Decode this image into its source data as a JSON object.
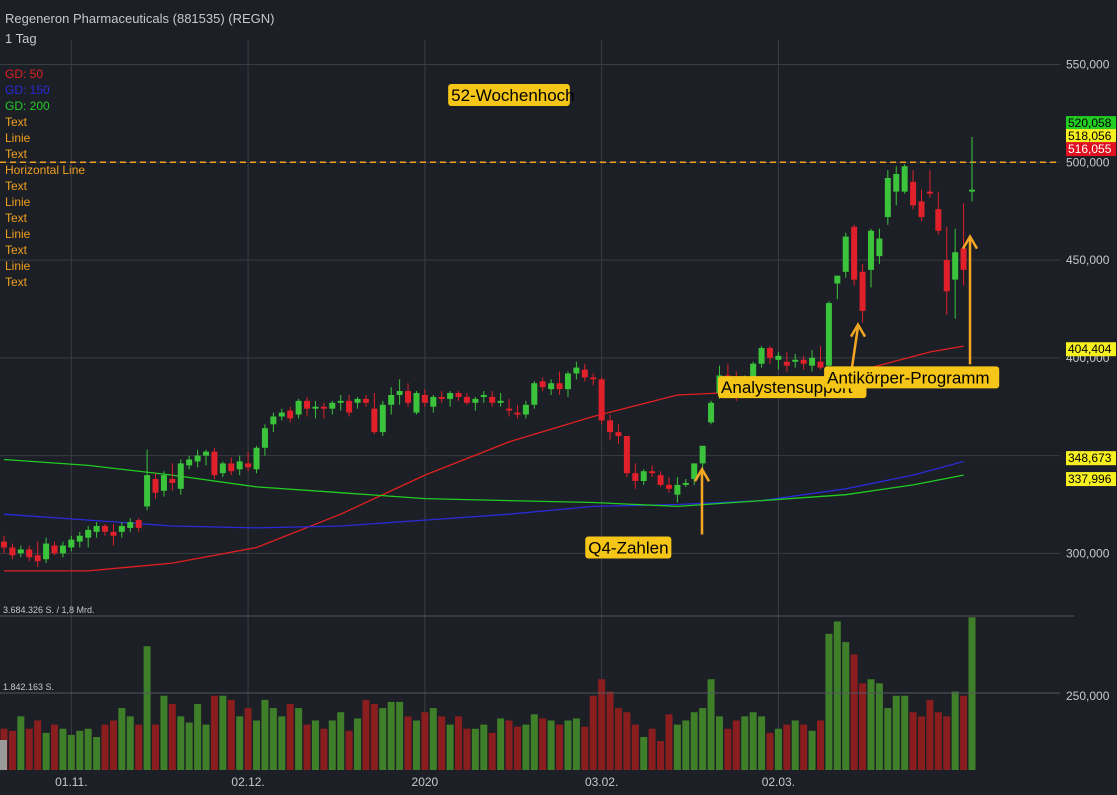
{
  "header": {
    "title": "Regeneron Pharmaceuticals (881535) (REGN)",
    "interval": "1 Tag"
  },
  "legend": [
    {
      "label": "GD: 50",
      "color": "#e02020"
    },
    {
      "label": "GD: 150",
      "color": "#2a2ad8"
    },
    {
      "label": "GD: 200",
      "color": "#22cc22"
    },
    {
      "label": "Text",
      "color": "#f0a020"
    },
    {
      "label": "Linie",
      "color": "#f0a020"
    },
    {
      "label": "Text",
      "color": "#f0a020"
    },
    {
      "label": "Horizontal Line",
      "color": "#f0a020"
    },
    {
      "label": "Text",
      "color": "#f0a020"
    },
    {
      "label": "Linie",
      "color": "#f0a020"
    },
    {
      "label": "Text",
      "color": "#f0a020"
    },
    {
      "label": "Linie",
      "color": "#f0a020"
    },
    {
      "label": "Text",
      "color": "#f0a020"
    },
    {
      "label": "Linie",
      "color": "#f0a020"
    },
    {
      "label": "Text",
      "color": "#f0a020"
    }
  ],
  "chart_data": {
    "type": "candlestick",
    "y_axis": {
      "ticks": [
        300,
        350,
        400,
        450,
        500,
        550
      ],
      "tick_labels": [
        "300,000",
        "350,000",
        "400,000",
        "450,000",
        "500,000",
        "550,000"
      ],
      "range": [
        270,
        560
      ]
    },
    "x_axis": {
      "tick_labels": [
        "01.11.",
        "02.12.",
        "2020",
        "03.02.",
        "02.03."
      ],
      "tick_index": [
        8,
        29,
        50,
        71,
        92
      ]
    },
    "price_tags": [
      {
        "value": 520.058,
        "label": "520,058",
        "bg": "#22cc22",
        "fg": "#000000"
      },
      {
        "value": 518.056,
        "label": "518,056",
        "bg": "#f7f020",
        "fg": "#000000"
      },
      {
        "value": 516.055,
        "label": "516,055",
        "bg": "#e01020",
        "fg": "#ffffff"
      },
      {
        "value": 404.404,
        "label": "404,404",
        "bg": "#f7f020",
        "fg": "#000000"
      },
      {
        "value": 348.673,
        "label": "348,673",
        "bg": "#f7f020",
        "fg": "#000000"
      },
      {
        "value": 337.996,
        "label": "337,996",
        "bg": "#f7f020",
        "fg": "#000000"
      }
    ],
    "horizontal_line": {
      "value": 500,
      "color": "#f0a020",
      "label": "52-Wochenhoch"
    },
    "annotations": [
      {
        "text": "Q4-Zahlen",
        "index": 75,
        "value": 303,
        "arrow_to": 343
      },
      {
        "text": "Analystensupport",
        "index": 94,
        "value": 385,
        "arrow_to": 417
      },
      {
        "text": "Antikörper-Programm",
        "index": 107,
        "value": 390,
        "arrow_to": 462
      }
    ],
    "volume": {
      "top_label": "3.684.326 S. / 1,8 Mrd.",
      "mid_label": "1.842.163 S.",
      "max": 3684326,
      "right_tick_label": "250,000"
    },
    "candles": [
      {
        "o": 306,
        "h": 309,
        "l": 300,
        "c": 303,
        "v": 1000000
      },
      {
        "o": 303,
        "h": 305,
        "l": 297,
        "c": 299,
        "v": 950000
      },
      {
        "o": 300,
        "h": 304,
        "l": 298,
        "c": 302,
        "v": 1300000
      },
      {
        "o": 302,
        "h": 304,
        "l": 296,
        "c": 298,
        "v": 1000000
      },
      {
        "o": 299,
        "h": 306,
        "l": 293,
        "c": 296,
        "v": 1200000
      },
      {
        "o": 297,
        "h": 308,
        "l": 295,
        "c": 305,
        "v": 900000
      },
      {
        "o": 304,
        "h": 306,
        "l": 299,
        "c": 300,
        "v": 1100000
      },
      {
        "o": 300,
        "h": 306,
        "l": 298,
        "c": 304,
        "v": 1000000
      },
      {
        "o": 303,
        "h": 309,
        "l": 301,
        "c": 307,
        "v": 850000
      },
      {
        "o": 306,
        "h": 311,
        "l": 303,
        "c": 309,
        "v": 950000
      },
      {
        "o": 308,
        "h": 314,
        "l": 303,
        "c": 312,
        "v": 1000000
      },
      {
        "o": 311,
        "h": 316,
        "l": 308,
        "c": 314,
        "v": 800000
      },
      {
        "o": 314,
        "h": 315,
        "l": 309,
        "c": 311,
        "v": 1100000
      },
      {
        "o": 311,
        "h": 315,
        "l": 304,
        "c": 309,
        "v": 1200000
      },
      {
        "o": 311,
        "h": 316,
        "l": 308,
        "c": 314,
        "v": 1500000
      },
      {
        "o": 313,
        "h": 318,
        "l": 311,
        "c": 316,
        "v": 1300000
      },
      {
        "o": 317,
        "h": 318,
        "l": 311,
        "c": 313,
        "v": 1100000
      },
      {
        "o": 324,
        "h": 353,
        "l": 322,
        "c": 340,
        "v": 3000000
      },
      {
        "o": 338,
        "h": 341,
        "l": 328,
        "c": 331,
        "v": 1100000
      },
      {
        "o": 332,
        "h": 342,
        "l": 329,
        "c": 340,
        "v": 1800000
      },
      {
        "o": 338,
        "h": 346,
        "l": 332,
        "c": 336,
        "v": 1600000
      },
      {
        "o": 333,
        "h": 348,
        "l": 330,
        "c": 346,
        "v": 1300000
      },
      {
        "o": 345,
        "h": 350,
        "l": 343,
        "c": 348,
        "v": 1150000
      },
      {
        "o": 347,
        "h": 353,
        "l": 344,
        "c": 350,
        "v": 1600000
      },
      {
        "o": 350,
        "h": 353,
        "l": 345,
        "c": 352,
        "v": 1100000
      },
      {
        "o": 352,
        "h": 354,
        "l": 338,
        "c": 340,
        "v": 1800000
      },
      {
        "o": 341,
        "h": 347,
        "l": 339,
        "c": 346,
        "v": 1800000
      },
      {
        "o": 346,
        "h": 349,
        "l": 340,
        "c": 342,
        "v": 1700000
      },
      {
        "o": 343,
        "h": 350,
        "l": 340,
        "c": 347,
        "v": 1300000
      },
      {
        "o": 346,
        "h": 352,
        "l": 342,
        "c": 344,
        "v": 1500000
      },
      {
        "o": 343,
        "h": 355,
        "l": 341,
        "c": 354,
        "v": 1200000
      },
      {
        "o": 354,
        "h": 366,
        "l": 350,
        "c": 364,
        "v": 1700000
      },
      {
        "o": 366,
        "h": 372,
        "l": 362,
        "c": 370,
        "v": 1500000
      },
      {
        "o": 370,
        "h": 374,
        "l": 368,
        "c": 372,
        "v": 1300000
      },
      {
        "o": 373,
        "h": 375,
        "l": 367,
        "c": 369,
        "v": 1600000
      },
      {
        "o": 371,
        "h": 379,
        "l": 369,
        "c": 378,
        "v": 1500000
      },
      {
        "o": 378,
        "h": 380,
        "l": 370,
        "c": 374,
        "v": 1100000
      },
      {
        "o": 374,
        "h": 378,
        "l": 369,
        "c": 375,
        "v": 1200000
      },
      {
        "o": 375,
        "h": 377,
        "l": 369,
        "c": 374,
        "v": 1000000
      },
      {
        "o": 374,
        "h": 378,
        "l": 371,
        "c": 377,
        "v": 1200000
      },
      {
        "o": 377,
        "h": 381,
        "l": 373,
        "c": 378,
        "v": 1400000
      },
      {
        "o": 378,
        "h": 381,
        "l": 370,
        "c": 372,
        "v": 950000
      },
      {
        "o": 377,
        "h": 380,
        "l": 374,
        "c": 379,
        "v": 1250000
      },
      {
        "o": 379,
        "h": 381,
        "l": 375,
        "c": 377,
        "v": 1700000
      },
      {
        "o": 374,
        "h": 382,
        "l": 361,
        "c": 362,
        "v": 1600000
      },
      {
        "o": 362,
        "h": 378,
        "l": 360,
        "c": 376,
        "v": 1500000
      },
      {
        "o": 376,
        "h": 385,
        "l": 371,
        "c": 381,
        "v": 1650000
      },
      {
        "o": 381,
        "h": 389,
        "l": 376,
        "c": 383,
        "v": 1650000
      },
      {
        "o": 383,
        "h": 387,
        "l": 375,
        "c": 377,
        "v": 1300000
      },
      {
        "o": 372,
        "h": 383,
        "l": 371,
        "c": 382,
        "v": 1200000
      },
      {
        "o": 381,
        "h": 384,
        "l": 375,
        "c": 377,
        "v": 1400000
      },
      {
        "o": 375,
        "h": 381,
        "l": 372,
        "c": 380,
        "v": 1500000
      },
      {
        "o": 380,
        "h": 383,
        "l": 377,
        "c": 379,
        "v": 1300000
      },
      {
        "o": 379,
        "h": 383,
        "l": 375,
        "c": 382,
        "v": 1100000
      },
      {
        "o": 382,
        "h": 383,
        "l": 378,
        "c": 380,
        "v": 1300000
      },
      {
        "o": 380,
        "h": 382,
        "l": 376,
        "c": 377,
        "v": 1000000
      },
      {
        "o": 377,
        "h": 380,
        "l": 373,
        "c": 379,
        "v": 1000000
      },
      {
        "o": 380,
        "h": 383,
        "l": 377,
        "c": 381,
        "v": 1100000
      },
      {
        "o": 380,
        "h": 383,
        "l": 375,
        "c": 377,
        "v": 900000
      },
      {
        "o": 377,
        "h": 382,
        "l": 375,
        "c": 378,
        "v": 1250000
      },
      {
        "o": 374,
        "h": 379,
        "l": 370,
        "c": 373,
        "v": 1200000
      },
      {
        "o": 372,
        "h": 376,
        "l": 369,
        "c": 371,
        "v": 1050000
      },
      {
        "o": 371,
        "h": 378,
        "l": 369,
        "c": 376,
        "v": 1100000
      },
      {
        "o": 376,
        "h": 388,
        "l": 374,
        "c": 387,
        "v": 1350000
      },
      {
        "o": 388,
        "h": 390,
        "l": 383,
        "c": 385,
        "v": 1250000
      },
      {
        "o": 384,
        "h": 389,
        "l": 381,
        "c": 387,
        "v": 1200000
      },
      {
        "o": 387,
        "h": 393,
        "l": 381,
        "c": 384,
        "v": 1100000
      },
      {
        "o": 384,
        "h": 393,
        "l": 380,
        "c": 392,
        "v": 1200000
      },
      {
        "o": 392,
        "h": 398,
        "l": 389,
        "c": 395,
        "v": 1250000
      },
      {
        "o": 394,
        "h": 397,
        "l": 388,
        "c": 390,
        "v": 1050000
      },
      {
        "o": 390,
        "h": 392,
        "l": 386,
        "c": 389,
        "v": 1800000
      },
      {
        "o": 389,
        "h": 390,
        "l": 366,
        "c": 368,
        "v": 2200000
      },
      {
        "o": 368,
        "h": 371,
        "l": 358,
        "c": 362,
        "v": 1900000
      },
      {
        "o": 362,
        "h": 366,
        "l": 356,
        "c": 360,
        "v": 1500000
      },
      {
        "o": 360,
        "h": 360,
        "l": 339,
        "c": 341,
        "v": 1400000
      },
      {
        "o": 341,
        "h": 346,
        "l": 333,
        "c": 337,
        "v": 1100000
      },
      {
        "o": 337,
        "h": 343,
        "l": 335,
        "c": 342,
        "v": 800000
      },
      {
        "o": 342,
        "h": 345,
        "l": 339,
        "c": 341,
        "v": 1000000
      },
      {
        "o": 340,
        "h": 342,
        "l": 334,
        "c": 335,
        "v": 700000
      },
      {
        "o": 335,
        "h": 339,
        "l": 331,
        "c": 333,
        "v": 1350000
      },
      {
        "o": 330,
        "h": 339,
        "l": 326,
        "c": 335,
        "v": 1100000
      },
      {
        "o": 335,
        "h": 338,
        "l": 334,
        "c": 336,
        "v": 1200000
      },
      {
        "o": 338,
        "h": 346,
        "l": 335,
        "c": 346,
        "v": 1400000
      },
      {
        "o": 346,
        "h": 354,
        "l": 343,
        "c": 355,
        "v": 1500000
      },
      {
        "o": 367,
        "h": 378,
        "l": 366,
        "c": 377,
        "v": 2200000
      },
      {
        "o": 382,
        "h": 396,
        "l": 379,
        "c": 391,
        "v": 1300000
      },
      {
        "o": 391,
        "h": 397,
        "l": 383,
        "c": 389,
        "v": 1000000
      },
      {
        "o": 390,
        "h": 393,
        "l": 378,
        "c": 380,
        "v": 1200000
      },
      {
        "o": 380,
        "h": 391,
        "l": 380,
        "c": 389,
        "v": 1300000
      },
      {
        "o": 387,
        "h": 398,
        "l": 384,
        "c": 397,
        "v": 1400000
      },
      {
        "o": 397,
        "h": 406,
        "l": 395,
        "c": 405,
        "v": 1300000
      },
      {
        "o": 405,
        "h": 406,
        "l": 397,
        "c": 400,
        "v": 900000
      },
      {
        "o": 399,
        "h": 403,
        "l": 394,
        "c": 401,
        "v": 1000000
      },
      {
        "o": 398,
        "h": 403,
        "l": 393,
        "c": 396,
        "v": 1100000
      },
      {
        "o": 398,
        "h": 402,
        "l": 395,
        "c": 399,
        "v": 1200000
      },
      {
        "o": 399,
        "h": 401,
        "l": 394,
        "c": 397,
        "v": 1100000
      },
      {
        "o": 396,
        "h": 404,
        "l": 393,
        "c": 400,
        "v": 950000
      },
      {
        "o": 398,
        "h": 406,
        "l": 394,
        "c": 395,
        "v": 1200000
      },
      {
        "o": 396,
        "h": 429,
        "l": 388,
        "c": 428,
        "v": 3300000
      },
      {
        "o": 438,
        "h": 442,
        "l": 430,
        "c": 442,
        "v": 3600000
      },
      {
        "o": 444,
        "h": 464,
        "l": 441,
        "c": 462,
        "v": 3100000
      },
      {
        "o": 467,
        "h": 468,
        "l": 437,
        "c": 440,
        "v": 2800000
      },
      {
        "o": 444,
        "h": 448,
        "l": 418,
        "c": 424,
        "v": 2100000
      },
      {
        "o": 445,
        "h": 466,
        "l": 436,
        "c": 465,
        "v": 2200000
      },
      {
        "o": 452,
        "h": 466,
        "l": 448,
        "c": 461,
        "v": 2100000
      },
      {
        "o": 472,
        "h": 496,
        "l": 468,
        "c": 492,
        "v": 1500000
      },
      {
        "o": 485,
        "h": 498,
        "l": 478,
        "c": 494,
        "v": 1800000
      },
      {
        "o": 485,
        "h": 499,
        "l": 484,
        "c": 498,
        "v": 1800000
      },
      {
        "o": 490,
        "h": 496,
        "l": 476,
        "c": 478,
        "v": 1400000
      },
      {
        "o": 480,
        "h": 486,
        "l": 470,
        "c": 472,
        "v": 1300000
      },
      {
        "o": 485,
        "h": 496,
        "l": 482,
        "c": 484,
        "v": 1700000
      },
      {
        "o": 476,
        "h": 485,
        "l": 463,
        "c": 465,
        "v": 1400000
      },
      {
        "o": 450,
        "h": 467,
        "l": 422,
        "c": 434,
        "v": 1300000
      },
      {
        "o": 440,
        "h": 466,
        "l": 420,
        "c": 454,
        "v": 1900000
      },
      {
        "o": 456,
        "h": 479,
        "l": 437,
        "c": 445,
        "v": 1800000
      },
      {
        "o": 485,
        "h": 513,
        "l": 480,
        "c": 486,
        "v": 3700000
      }
    ],
    "moving_averages": [
      {
        "name": "GD: 50",
        "color": "#e02020",
        "points": [
          [
            0,
            291
          ],
          [
            10,
            291
          ],
          [
            20,
            295
          ],
          [
            30,
            303
          ],
          [
            40,
            320
          ],
          [
            50,
            340
          ],
          [
            60,
            357
          ],
          [
            70,
            370
          ],
          [
            80,
            381
          ],
          [
            90,
            383
          ],
          [
            96,
            384
          ],
          [
            103,
            395
          ],
          [
            110,
            403
          ],
          [
            114,
            406
          ]
        ]
      },
      {
        "name": "GD: 150",
        "color": "#2a2ad8",
        "points": [
          [
            0,
            320
          ],
          [
            10,
            317
          ],
          [
            20,
            314
          ],
          [
            30,
            313
          ],
          [
            40,
            314
          ],
          [
            50,
            317
          ],
          [
            60,
            320
          ],
          [
            70,
            324
          ],
          [
            80,
            325
          ],
          [
            90,
            327
          ],
          [
            100,
            333
          ],
          [
            108,
            340
          ],
          [
            114,
            347
          ]
        ]
      },
      {
        "name": "GD: 200",
        "color": "#22cc22",
        "points": [
          [
            0,
            348
          ],
          [
            10,
            345
          ],
          [
            20,
            340
          ],
          [
            30,
            334
          ],
          [
            40,
            331
          ],
          [
            50,
            328
          ],
          [
            60,
            327
          ],
          [
            70,
            326
          ],
          [
            80,
            324
          ],
          [
            90,
            327
          ],
          [
            100,
            330
          ],
          [
            108,
            335
          ],
          [
            114,
            340
          ]
        ]
      }
    ]
  }
}
